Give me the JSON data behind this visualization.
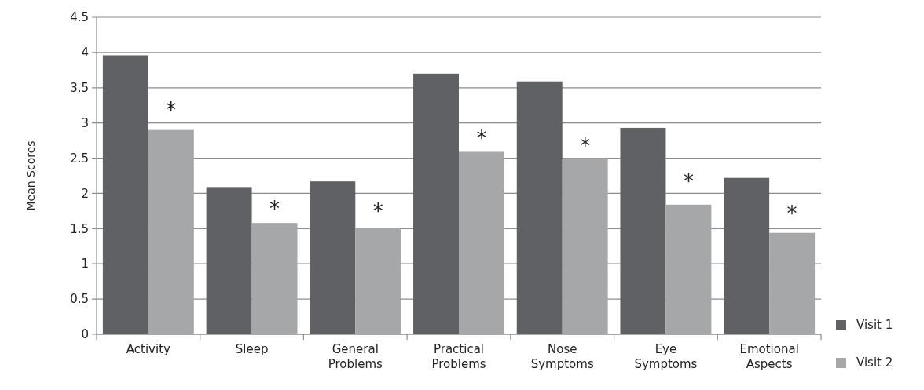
{
  "chart_data": {
    "type": "bar",
    "ylabel": "Mean Scores",
    "categories": [
      "Activity",
      "Sleep",
      "General Problems",
      "Practical Problems",
      "Nose Symptoms",
      "Eye Symptoms",
      "Emotional Aspects"
    ],
    "series": [
      {
        "name": "Visit 1",
        "color": "#606165",
        "values": [
          3.96,
          2.09,
          2.17,
          3.7,
          3.59,
          2.93,
          2.22
        ]
      },
      {
        "name": "Visit 2",
        "color": "#a6a7a9",
        "values": [
          2.9,
          1.58,
          1.51,
          2.59,
          2.5,
          1.84,
          1.44
        ]
      }
    ],
    "ylim": [
      0,
      4.5
    ],
    "yticks": [
      0,
      0.5,
      1,
      1.5,
      2,
      2.5,
      3,
      3.5,
      4,
      4.5
    ],
    "grid": "y",
    "legend": "right",
    "annotations": [
      {
        "text": "*",
        "x": "Activity",
        "y": 3.26
      },
      {
        "text": "*",
        "x": "Sleep",
        "y": 1.86
      },
      {
        "text": "*",
        "x": "General Problems",
        "y": 1.82
      },
      {
        "text": "*",
        "x": "Practical Problems",
        "y": 2.86
      },
      {
        "text": "*",
        "x": "Nose Symptoms",
        "y": 2.75
      },
      {
        "text": "*",
        "x": "Eye Symptoms",
        "y": 2.24
      },
      {
        "text": "*",
        "x": "Emotional Aspects",
        "y": 1.79
      }
    ]
  }
}
